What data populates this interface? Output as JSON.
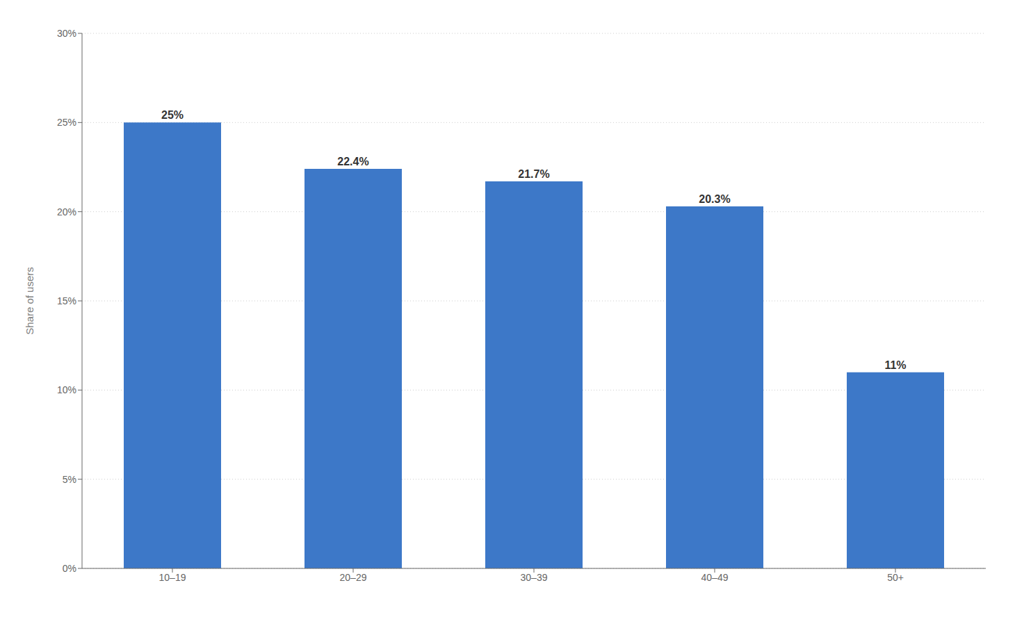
{
  "chart_data": {
    "type": "bar",
    "categories": [
      "10–19",
      "20–29",
      "30–39",
      "40–49",
      "50+"
    ],
    "values": [
      25.0,
      22.4,
      21.7,
      20.3,
      11.0
    ],
    "value_labels": [
      "25%",
      "22.4%",
      "21.7%",
      "20.3%",
      "11%"
    ],
    "color": "#3d78c8",
    "ylabel": "Share of users",
    "ylim": [
      0,
      30
    ],
    "yticks": [
      {
        "value": 0,
        "label": "0%"
      },
      {
        "value": 5,
        "label": "5%"
      },
      {
        "value": 10,
        "label": "10%"
      },
      {
        "value": 15,
        "label": "15%"
      },
      {
        "value": 20,
        "label": "20%"
      },
      {
        "value": 25,
        "label": "25%"
      },
      {
        "value": 30,
        "label": "30%"
      }
    ],
    "grid": true,
    "data_labels": true
  }
}
